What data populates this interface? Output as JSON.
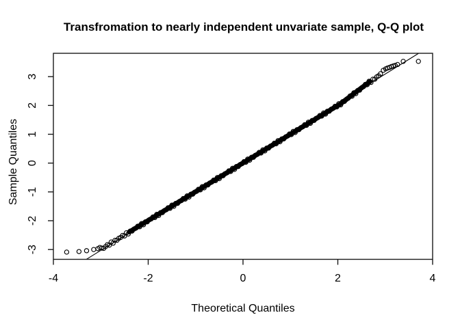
{
  "chart_data": {
    "type": "scatter",
    "subtype": "normal-qq",
    "title": "Transfromation to nearly independent unvariate sample, Q-Q plot",
    "xlabel": "Theoretical Quantiles",
    "ylabel": "Sample Quantiles",
    "xlim": [
      -4,
      4
    ],
    "ylim": [
      -3.34,
      3.81
    ],
    "x_ticks": [
      -4,
      -2,
      0,
      2,
      4
    ],
    "y_ticks": [
      -3,
      -2,
      -1,
      0,
      1,
      2,
      3
    ],
    "x_tick_labels": [
      "-4",
      "-2",
      "0",
      "2",
      "4"
    ],
    "y_tick_labels": [
      "-3",
      "-2",
      "-1",
      "0",
      "1",
      "2",
      "3"
    ],
    "grid": false,
    "legend_position": "none",
    "marker": "open-circle",
    "colors": {
      "points": "#000000",
      "reference_line": "#000000",
      "axis": "#1a1a1a",
      "background": "#ffffff"
    },
    "reference_line": {
      "slope": 1.02,
      "intercept": 0.03
    },
    "points": [
      [
        -3.72,
        -3.09
      ],
      [
        -3.46,
        -3.07
      ],
      [
        -3.3,
        -3.04
      ],
      [
        -3.15,
        -3.0
      ],
      [
        -3.06,
        -2.97
      ],
      [
        -3.02,
        -2.93
      ],
      [
        -2.98,
        -2.95
      ],
      [
        -2.94,
        -2.96
      ],
      [
        -2.9,
        -2.9
      ],
      [
        -2.86,
        -2.83
      ],
      [
        -2.82,
        -2.85
      ],
      [
        -2.78,
        -2.74
      ],
      [
        -2.74,
        -2.78
      ],
      [
        -2.7,
        -2.68
      ],
      [
        -2.66,
        -2.68
      ],
      [
        -2.62,
        -2.61
      ],
      [
        -2.58,
        -2.58
      ],
      [
        -2.54,
        -2.51
      ],
      [
        -2.5,
        -2.53
      ],
      [
        -2.46,
        -2.42
      ],
      [
        -2.42,
        -2.46
      ],
      [
        -2.38,
        -2.36
      ],
      [
        -2.34,
        -2.36
      ],
      [
        -2.3,
        -2.29
      ],
      [
        -2.26,
        -2.26
      ],
      [
        -2.22,
        -2.19
      ],
      [
        -2.18,
        -2.21
      ],
      [
        -2.14,
        -2.1
      ],
      [
        -2.1,
        -2.14
      ],
      [
        -2.06,
        -2.04
      ],
      [
        -2.02,
        -2.04
      ],
      [
        -1.98,
        -1.97
      ],
      [
        -1.94,
        -1.94
      ],
      [
        -1.9,
        -1.87
      ],
      [
        -1.86,
        -1.89
      ],
      [
        -1.82,
        -1.78
      ],
      [
        -1.78,
        -1.82
      ],
      [
        -1.74,
        -1.72
      ],
      [
        -1.7,
        -1.72
      ],
      [
        -1.66,
        -1.65
      ],
      [
        -1.62,
        -1.62
      ],
      [
        -1.58,
        -1.55
      ],
      [
        -1.54,
        -1.57
      ],
      [
        -1.5,
        -1.46
      ],
      [
        -1.46,
        -1.5
      ],
      [
        -1.42,
        -1.4
      ],
      [
        -1.38,
        -1.4
      ],
      [
        -1.34,
        -1.33
      ],
      [
        -1.3,
        -1.3
      ],
      [
        -1.26,
        -1.23
      ],
      [
        -1.22,
        -1.25
      ],
      [
        -1.18,
        -1.14
      ],
      [
        -1.14,
        -1.18
      ],
      [
        -1.1,
        -1.08
      ],
      [
        -1.06,
        -1.08
      ],
      [
        -1.02,
        -1.01
      ],
      [
        -0.98,
        -0.98
      ],
      [
        -0.94,
        -0.91
      ],
      [
        -0.9,
        -0.93
      ],
      [
        -0.86,
        -0.82
      ],
      [
        -0.82,
        -0.86
      ],
      [
        -0.78,
        -0.76
      ],
      [
        -0.74,
        -0.76
      ],
      [
        -0.7,
        -0.69
      ],
      [
        -0.66,
        -0.66
      ],
      [
        -0.62,
        -0.59
      ],
      [
        -0.58,
        -0.61
      ],
      [
        -0.54,
        -0.5
      ],
      [
        -0.5,
        -0.54
      ],
      [
        -0.46,
        -0.44
      ],
      [
        -0.42,
        -0.44
      ],
      [
        -0.38,
        -0.37
      ],
      [
        -0.34,
        -0.34
      ],
      [
        -0.3,
        -0.27
      ],
      [
        -0.26,
        -0.29
      ],
      [
        -0.22,
        -0.18
      ],
      [
        -0.18,
        -0.22
      ],
      [
        -0.14,
        -0.12
      ],
      [
        -0.1,
        -0.12
      ],
      [
        -0.06,
        -0.05
      ],
      [
        -0.02,
        -0.02
      ],
      [
        0.02,
        0.05
      ],
      [
        0.06,
        0.03
      ],
      [
        0.1,
        0.14
      ],
      [
        0.14,
        0.1
      ],
      [
        0.18,
        0.2
      ],
      [
        0.22,
        0.2
      ],
      [
        0.26,
        0.27
      ],
      [
        0.3,
        0.3
      ],
      [
        0.34,
        0.37
      ],
      [
        0.38,
        0.35
      ],
      [
        0.42,
        0.46
      ],
      [
        0.46,
        0.42
      ],
      [
        0.5,
        0.52
      ],
      [
        0.54,
        0.52
      ],
      [
        0.58,
        0.59
      ],
      [
        0.62,
        0.62
      ],
      [
        0.66,
        0.69
      ],
      [
        0.7,
        0.67
      ],
      [
        0.74,
        0.78
      ],
      [
        0.78,
        0.74
      ],
      [
        0.82,
        0.84
      ],
      [
        0.86,
        0.84
      ],
      [
        0.9,
        0.91
      ],
      [
        0.94,
        0.94
      ],
      [
        0.98,
        1.01
      ],
      [
        1.02,
        0.99
      ],
      [
        1.06,
        1.1
      ],
      [
        1.1,
        1.06
      ],
      [
        1.14,
        1.16
      ],
      [
        1.18,
        1.16
      ],
      [
        1.22,
        1.23
      ],
      [
        1.26,
        1.26
      ],
      [
        1.3,
        1.33
      ],
      [
        1.34,
        1.31
      ],
      [
        1.38,
        1.42
      ],
      [
        1.42,
        1.38
      ],
      [
        1.46,
        1.48
      ],
      [
        1.5,
        1.48
      ],
      [
        1.54,
        1.55
      ],
      [
        1.58,
        1.58
      ],
      [
        1.62,
        1.65
      ],
      [
        1.66,
        1.63
      ],
      [
        1.7,
        1.74
      ],
      [
        1.74,
        1.7
      ],
      [
        1.78,
        1.8
      ],
      [
        1.82,
        1.8
      ],
      [
        1.86,
        1.87
      ],
      [
        1.9,
        1.9
      ],
      [
        1.94,
        1.97
      ],
      [
        1.98,
        1.95
      ],
      [
        2.02,
        2.06
      ],
      [
        2.06,
        2.02
      ],
      [
        2.1,
        2.13
      ],
      [
        2.14,
        2.14
      ],
      [
        2.18,
        2.21
      ],
      [
        2.22,
        2.25
      ],
      [
        2.26,
        2.33
      ],
      [
        2.3,
        2.32
      ],
      [
        2.34,
        2.44
      ],
      [
        2.38,
        2.41
      ],
      [
        2.42,
        2.52
      ],
      [
        2.46,
        2.53
      ],
      [
        2.5,
        2.61
      ],
      [
        2.54,
        2.65
      ],
      [
        2.58,
        2.73
      ],
      [
        2.62,
        2.72
      ],
      [
        2.66,
        2.84
      ],
      [
        2.7,
        2.8
      ],
      [
        2.74,
        2.91
      ],
      [
        2.78,
        2.91
      ],
      [
        2.82,
        2.99
      ],
      [
        2.86,
        3.03
      ],
      [
        2.9,
        3.1
      ],
      [
        2.96,
        3.22
      ],
      [
        3.01,
        3.27
      ],
      [
        3.05,
        3.3
      ],
      [
        3.09,
        3.32
      ],
      [
        3.13,
        3.35
      ],
      [
        3.17,
        3.37
      ],
      [
        3.21,
        3.39
      ],
      [
        3.26,
        3.42
      ],
      [
        3.38,
        3.53
      ],
      [
        3.7,
        3.53
      ]
    ]
  }
}
